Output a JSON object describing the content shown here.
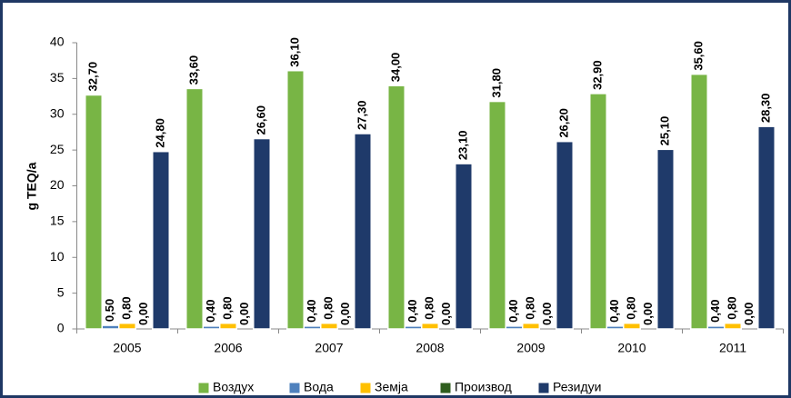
{
  "chart_data": {
    "type": "bar",
    "y_label": "g TEQ/a",
    "categories": [
      "2005",
      "2006",
      "2007",
      "2008",
      "2009",
      "2010",
      "2011"
    ],
    "series": [
      {
        "name": "Воздух",
        "color": "#78b545",
        "values": [
          32.7,
          33.6,
          36.1,
          34.0,
          31.8,
          32.9,
          35.6
        ],
        "value_labels": [
          "32,70",
          "33,60",
          "36,10",
          "34,00",
          "31,80",
          "32,90",
          "35,60"
        ]
      },
      {
        "name": "Вода",
        "color": "#4f81bd",
        "values": [
          0.5,
          0.4,
          0.4,
          0.4,
          0.4,
          0.4,
          0.4
        ],
        "value_labels": [
          "0,50",
          "0,40",
          "0,40",
          "0,40",
          "0,40",
          "0,40",
          "0,40"
        ]
      },
      {
        "name": "Земја",
        "color": "#ffc000",
        "values": [
          0.8,
          0.8,
          0.8,
          0.8,
          0.8,
          0.8,
          0.8
        ],
        "value_labels": [
          "0,80",
          "0,80",
          "0,80",
          "0,80",
          "0,80",
          "0,80",
          "0,80"
        ]
      },
      {
        "name": "Производ",
        "color": "#2f5e1e",
        "values": [
          0,
          0,
          0,
          0,
          0,
          0,
          0
        ],
        "value_labels": [
          "0,00",
          "0,00",
          "0,00",
          "0,00",
          "0,00",
          "0,00",
          "0,00"
        ]
      },
      {
        "name": "Резидуи",
        "color": "#1f3a6a",
        "values": [
          24.8,
          26.6,
          27.3,
          23.1,
          26.2,
          25.1,
          28.3
        ],
        "value_labels": [
          "24,80",
          "26,60",
          "27,30",
          "23,10",
          "26,20",
          "25,10",
          "28,30"
        ]
      }
    ],
    "ylim": [
      0,
      40
    ],
    "yticks": [
      0,
      5,
      10,
      15,
      20,
      25,
      30,
      35,
      40
    ],
    "grid": false
  }
}
